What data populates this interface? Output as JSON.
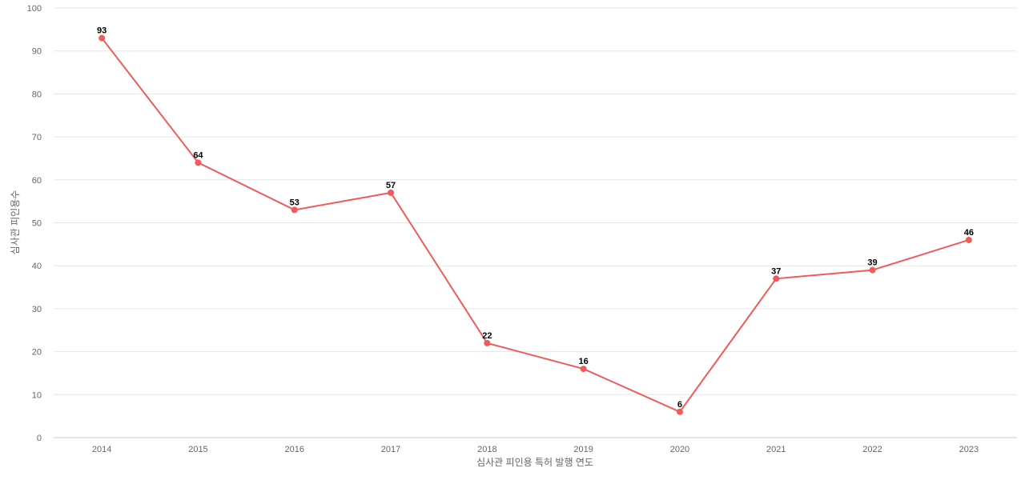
{
  "chart_data": {
    "type": "line",
    "title": "",
    "xlabel": "심사관 피인용 특허 발행 연도",
    "ylabel": "심사관 피인용수",
    "categories": [
      "2014",
      "2015",
      "2016",
      "2017",
      "2018",
      "2019",
      "2020",
      "2021",
      "2022",
      "2023"
    ],
    "series": [
      {
        "values": [
          93,
          64,
          53,
          57,
          22,
          16,
          6,
          37,
          39,
          46
        ],
        "color": "#ef5b5b"
      }
    ],
    "ylim": [
      0,
      100
    ],
    "yticks": [
      0,
      10,
      20,
      30,
      40,
      50,
      60,
      70,
      80,
      90,
      100
    ],
    "grid": true,
    "legend": "none",
    "data_labels": true
  }
}
